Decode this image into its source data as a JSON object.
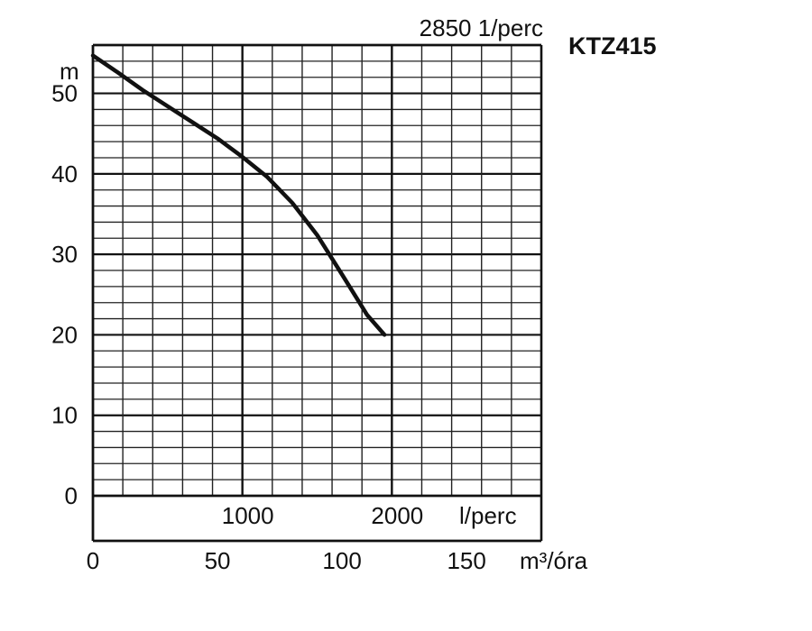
{
  "chart_data": {
    "type": "line",
    "title": "KTZ415",
    "speed_label": "2850 1/perc",
    "ylabel": "m",
    "ylim": [
      0,
      56
    ],
    "yticks": [
      "0",
      "10",
      "20",
      "30",
      "40",
      "50"
    ],
    "x_flow_lpm": {
      "label": "l/perc",
      "ticks": [
        "1000",
        "2000"
      ],
      "tick_values": [
        1000,
        2000
      ]
    },
    "x_flow_m3h": {
      "label": "m³/óra",
      "ticks": [
        "0",
        "50",
        "100",
        "150"
      ],
      "tick_values": [
        0,
        50,
        100,
        150
      ],
      "range": [
        0,
        180
      ]
    },
    "series": [
      {
        "x": [
          0,
          10,
          20,
          30,
          40,
          50,
          60,
          70,
          80,
          90,
          100,
          110,
          117
        ],
        "y": [
          54.7,
          52.6,
          50.4,
          48.4,
          46.4,
          44.4,
          42.1,
          39.6,
          36.4,
          32.4,
          27.5,
          22.5,
          20
        ]
      }
    ]
  }
}
